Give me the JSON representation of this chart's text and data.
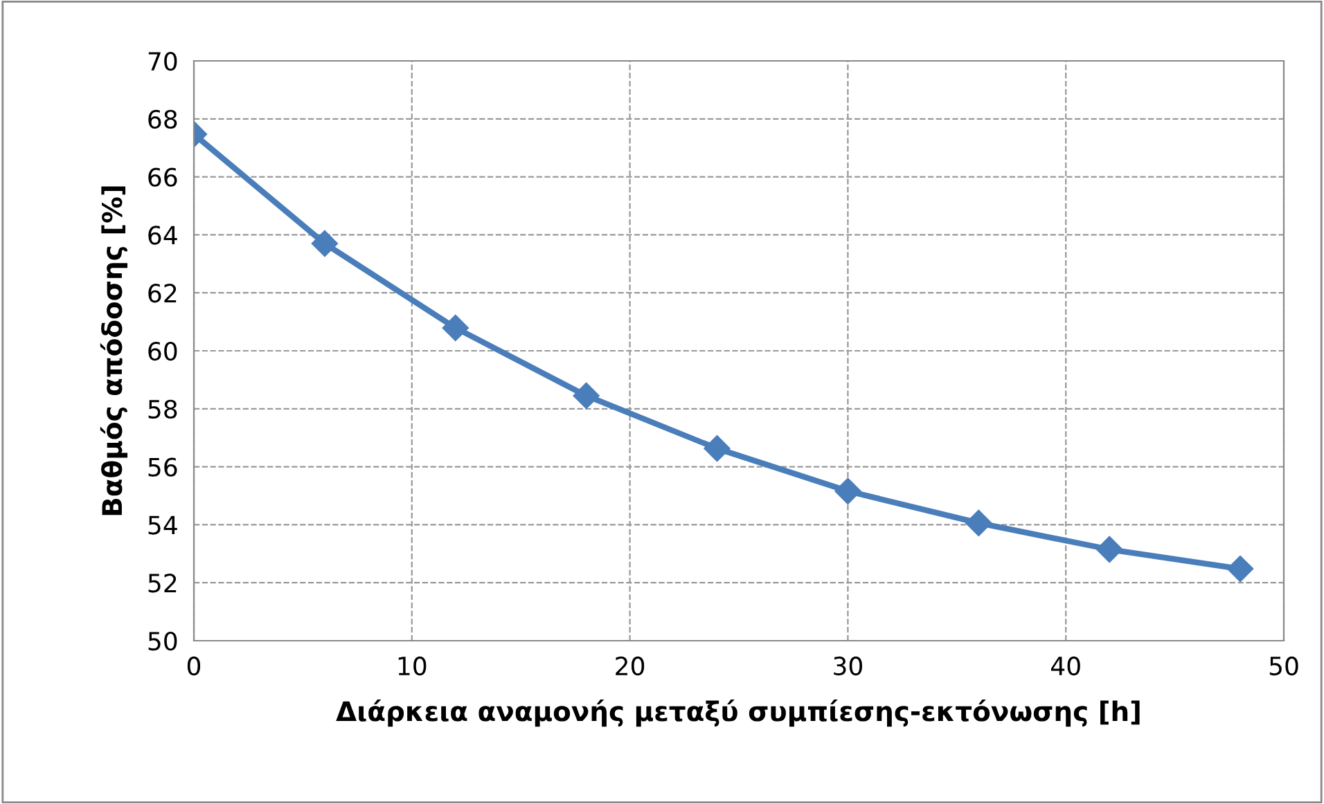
{
  "chart_data": {
    "type": "line",
    "xlabel": "Διάρκεια αναμονής μεταξύ συμπίεσης-εκτόνωσης [h]",
    "ylabel": "Βαθμός απόδοσης [%]",
    "x": [
      0,
      6,
      12,
      18,
      24,
      30,
      36,
      42,
      48
    ],
    "series": [
      {
        "color": "#4a7ebb",
        "values": [
          67.47,
          63.7,
          60.79,
          58.45,
          56.63,
          55.16,
          54.06,
          53.15,
          52.48
        ]
      }
    ],
    "xlim": [
      0,
      50
    ],
    "xticks": [
      0,
      10,
      20,
      30,
      40,
      50
    ],
    "ylim": [
      50,
      70
    ],
    "yticks": [
      50,
      52,
      54,
      56,
      58,
      60,
      62,
      64,
      66,
      68,
      70
    ],
    "grid": true,
    "marker": "diamond",
    "line_style": "solid",
    "legend": false
  }
}
